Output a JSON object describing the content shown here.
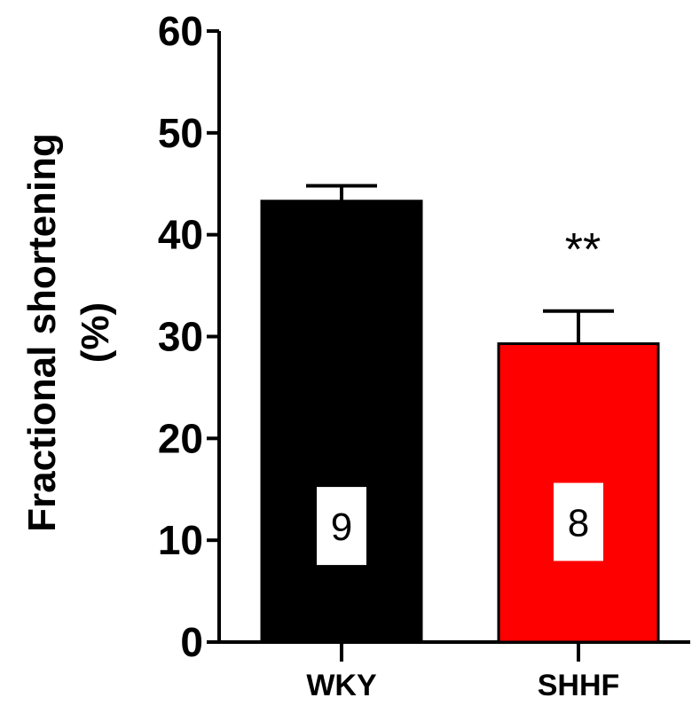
{
  "chart_data": {
    "type": "bar",
    "ylabel_lines": [
      "Fractional shortening",
      "(%)"
    ],
    "ylim": [
      0,
      60
    ],
    "yticks": [
      0,
      10,
      20,
      30,
      40,
      50,
      60
    ],
    "ytick_labels": [
      "0",
      "10",
      "20",
      "30",
      "40",
      "50",
      "60"
    ],
    "categories": [
      "WKY",
      "SHHF"
    ],
    "values": [
      43.3,
      29.3
    ],
    "errors": [
      1.5,
      3.2
    ],
    "colors": [
      "#000000",
      "#ff0000"
    ],
    "n_labels": [
      "9",
      "8"
    ],
    "n_label_centers": [
      11.4,
      11.8
    ],
    "significance": [
      "",
      "**"
    ],
    "grid": false
  }
}
